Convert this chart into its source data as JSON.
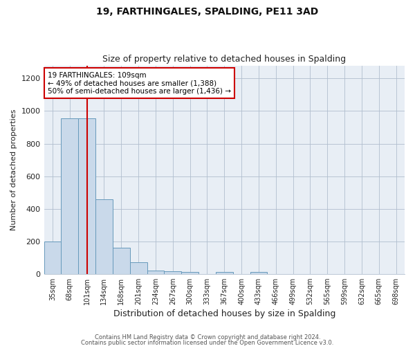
{
  "title": "19, FARTHINGALES, SPALDING, PE11 3AD",
  "subtitle": "Size of property relative to detached houses in Spalding",
  "xlabel": "Distribution of detached houses by size in Spalding",
  "ylabel": "Number of detached properties",
  "bar_labels": [
    "35sqm",
    "68sqm",
    "101sqm",
    "134sqm",
    "168sqm",
    "201sqm",
    "234sqm",
    "267sqm",
    "300sqm",
    "333sqm",
    "367sqm",
    "400sqm",
    "433sqm",
    "466sqm",
    "499sqm",
    "532sqm",
    "565sqm",
    "599sqm",
    "632sqm",
    "665sqm",
    "698sqm"
  ],
  "bar_values": [
    200,
    955,
    955,
    460,
    160,
    70,
    22,
    17,
    13,
    0,
    10,
    0,
    10,
    0,
    0,
    0,
    0,
    0,
    0,
    0,
    0
  ],
  "bar_color": "#c9d9ea",
  "bar_edge_color": "#6699bb",
  "vline_x_idx": 2,
  "vline_color": "#cc0000",
  "ylim": [
    0,
    1280
  ],
  "yticks": [
    0,
    200,
    400,
    600,
    800,
    1000,
    1200
  ],
  "annotation_title": "19 FARTHINGALES: 109sqm",
  "annotation_line1": "← 49% of detached houses are smaller (1,388)",
  "annotation_line2": "50% of semi-detached houses are larger (1,436) →",
  "annotation_box_facecolor": "#ffffff",
  "annotation_box_edgecolor": "#cc0000",
  "footer_line1": "Contains HM Land Registry data © Crown copyright and database right 2024.",
  "footer_line2": "Contains public sector information licensed under the Open Government Licence v3.0.",
  "background_color": "#ffffff",
  "plot_background_color": "#e8eef5"
}
